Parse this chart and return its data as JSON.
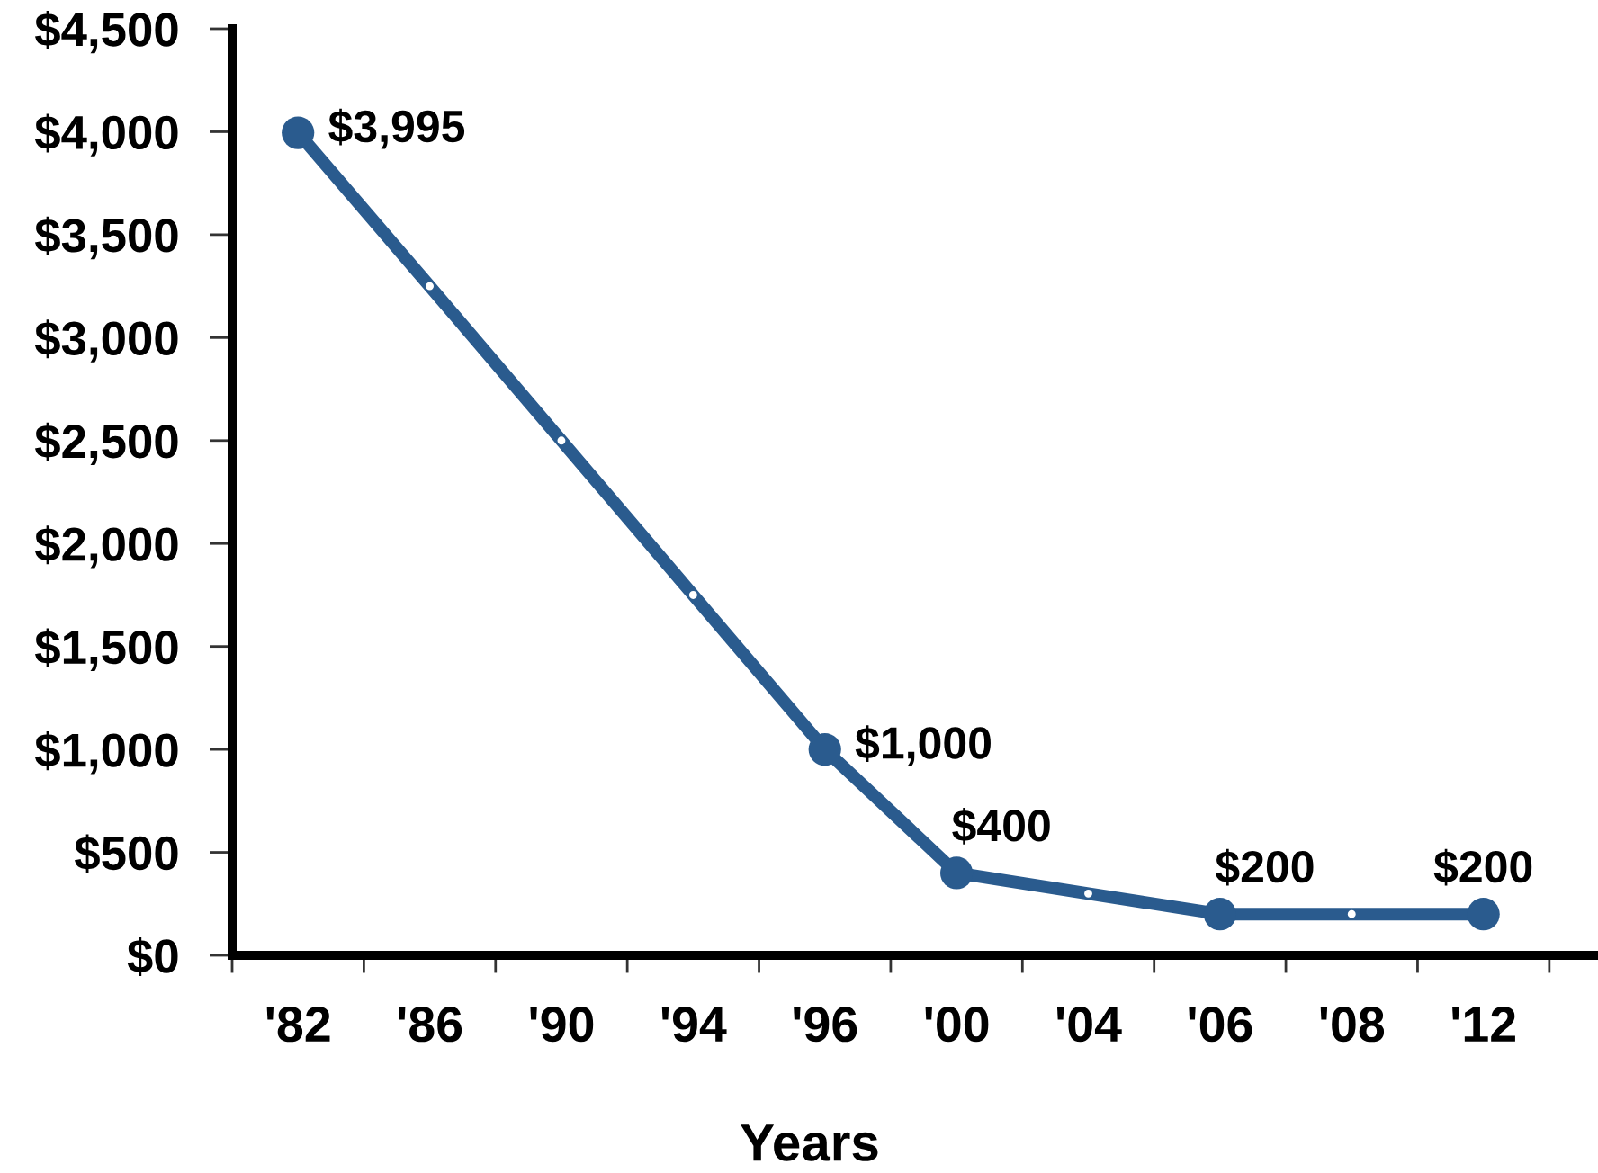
{
  "chart_data": {
    "type": "line",
    "xlabel": "Years",
    "categories": [
      "'82",
      "'86",
      "'90",
      "'94",
      "'96",
      "'00",
      "'04",
      "'06",
      "'08",
      "'12"
    ],
    "series": [
      {
        "color": "#2a5b8e",
        "marker": "circle",
        "values": [
          3995,
          3250,
          2500,
          1750,
          1000,
          400,
          300,
          200,
          200,
          200
        ]
      },
      {
        "type": "scatter",
        "color": "#2a5b8e",
        "marker": "circle",
        "values": [
          3995,
          null,
          null,
          null,
          1000,
          400,
          null,
          200,
          null,
          200
        ],
        "value_labels": [
          "$3,995",
          null,
          null,
          null,
          "$1,000",
          "$400",
          null,
          "$200",
          null,
          "$200"
        ]
      }
    ],
    "ylim": [
      0,
      4500
    ],
    "yticks": [
      {
        "value": 0,
        "label": "$0"
      },
      {
        "value": 500,
        "label": "$500"
      },
      {
        "value": 1000,
        "label": "$1,000"
      },
      {
        "value": 1500,
        "label": "$1,500"
      },
      {
        "value": 2000,
        "label": "$2,000"
      },
      {
        "value": 2500,
        "label": "$2,500"
      },
      {
        "value": 3000,
        "label": "$3,000"
      },
      {
        "value": 3500,
        "label": "$3,500"
      },
      {
        "value": 4000,
        "label": "$4,000"
      },
      {
        "value": 4500,
        "label": "$4,500"
      }
    ]
  }
}
